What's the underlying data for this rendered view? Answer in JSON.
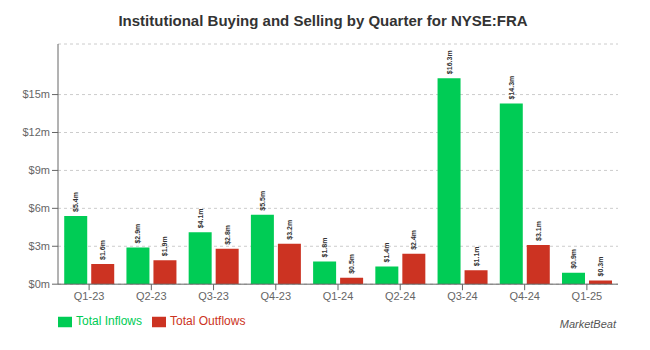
{
  "chart_data": {
    "type": "bar",
    "title": "Institutional Buying and Selling by Quarter for NYSE:FRA",
    "categories": [
      "Q1-23",
      "Q2-23",
      "Q3-23",
      "Q4-23",
      "Q1-24",
      "Q2-24",
      "Q3-24",
      "Q4-24",
      "Q1-25"
    ],
    "series": [
      {
        "name": "Total Inflows",
        "color": "#00cc55",
        "values": [
          5.4,
          2.9,
          4.1,
          5.5,
          1.8,
          1.4,
          16.3,
          14.3,
          0.9
        ],
        "value_labels": [
          "$5.4m",
          "$2.9m",
          "$4.1m",
          "$5.5m",
          "$1.8m",
          "$1.4m",
          "$16.3m",
          "$14.3m",
          "$0.9m"
        ]
      },
      {
        "name": "Total Outflows",
        "color": "#cc3322",
        "values": [
          1.6,
          1.9,
          2.8,
          3.2,
          0.5,
          2.4,
          1.1,
          3.1,
          0.3
        ],
        "value_labels": [
          "$1.6m",
          "$1.9m",
          "$2.8m",
          "$3.2m",
          "$0.5m",
          "$2.4m",
          "$1.1m",
          "$3.1m",
          "$0.3m"
        ]
      }
    ],
    "ylim": [
      0,
      19
    ],
    "yticks": [
      {
        "value": 0,
        "label": "$0m"
      },
      {
        "value": 3,
        "label": "$3m"
      },
      {
        "value": 6,
        "label": "$6m"
      },
      {
        "value": 9,
        "label": "$9m"
      },
      {
        "value": 12,
        "label": "$12m"
      },
      {
        "value": 15,
        "label": "$15m"
      }
    ],
    "grid": true,
    "legend": "lower left",
    "data_labels": true,
    "annotation": "MarketBeat"
  }
}
